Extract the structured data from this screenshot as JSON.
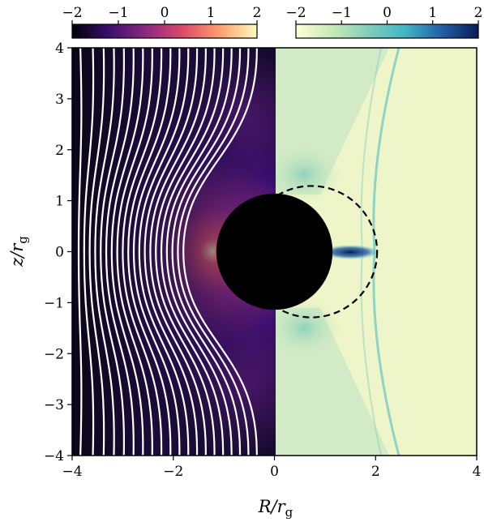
{
  "chart_data": {
    "type": "heatmap",
    "title": "",
    "xlabel": "R/r_g",
    "ylabel": "z/r_g",
    "xlabel_parts": {
      "main": "R/r",
      "sub": "g"
    },
    "ylabel_parts": {
      "main": "z/r",
      "sub": "g"
    },
    "xlim": [
      -4,
      4
    ],
    "ylim": [
      -4,
      4
    ],
    "x_ticks": [
      -4,
      -2,
      0,
      2,
      4
    ],
    "y_ticks": [
      -4,
      -3,
      -2,
      -1,
      0,
      1,
      2,
      3,
      4
    ],
    "x_tick_labels": [
      "−4",
      "−2",
      "0",
      "2",
      "4"
    ],
    "y_tick_labels": [
      "−4",
      "−3",
      "−2",
      "−1",
      "0",
      "1",
      "2",
      "3",
      "4"
    ],
    "black_hole": {
      "center": [
        0,
        0
      ],
      "radius": 1.15
    },
    "dashed_circle": {
      "center_x": 0.73,
      "radius": 1.3
    },
    "field_lines": {
      "color": "#ffffff",
      "count": 20
    },
    "colorbars": [
      {
        "name": "left-panel",
        "colormap": "magma",
        "range": [
          -2,
          2
        ],
        "ticks": [
          -2,
          -1,
          0,
          1,
          2
        ],
        "tick_labels": [
          "−2",
          "−1",
          "0",
          "1",
          "2"
        ],
        "colors": [
          "#000004",
          "#3b0f70",
          "#8c2981",
          "#de4968",
          "#fe9f6d",
          "#fcfdbf"
        ]
      },
      {
        "name": "right-panel",
        "colormap": "YlGnBu",
        "range": [
          -2,
          2
        ],
        "ticks": [
          -2,
          -1,
          0,
          1,
          2
        ],
        "tick_labels": [
          "−2",
          "−1",
          "0",
          "1",
          "2"
        ],
        "colors": [
          "#ffffd9",
          "#c7e9b4",
          "#7fcdbb",
          "#41b6c4",
          "#225ea8",
          "#081d58"
        ]
      }
    ]
  }
}
